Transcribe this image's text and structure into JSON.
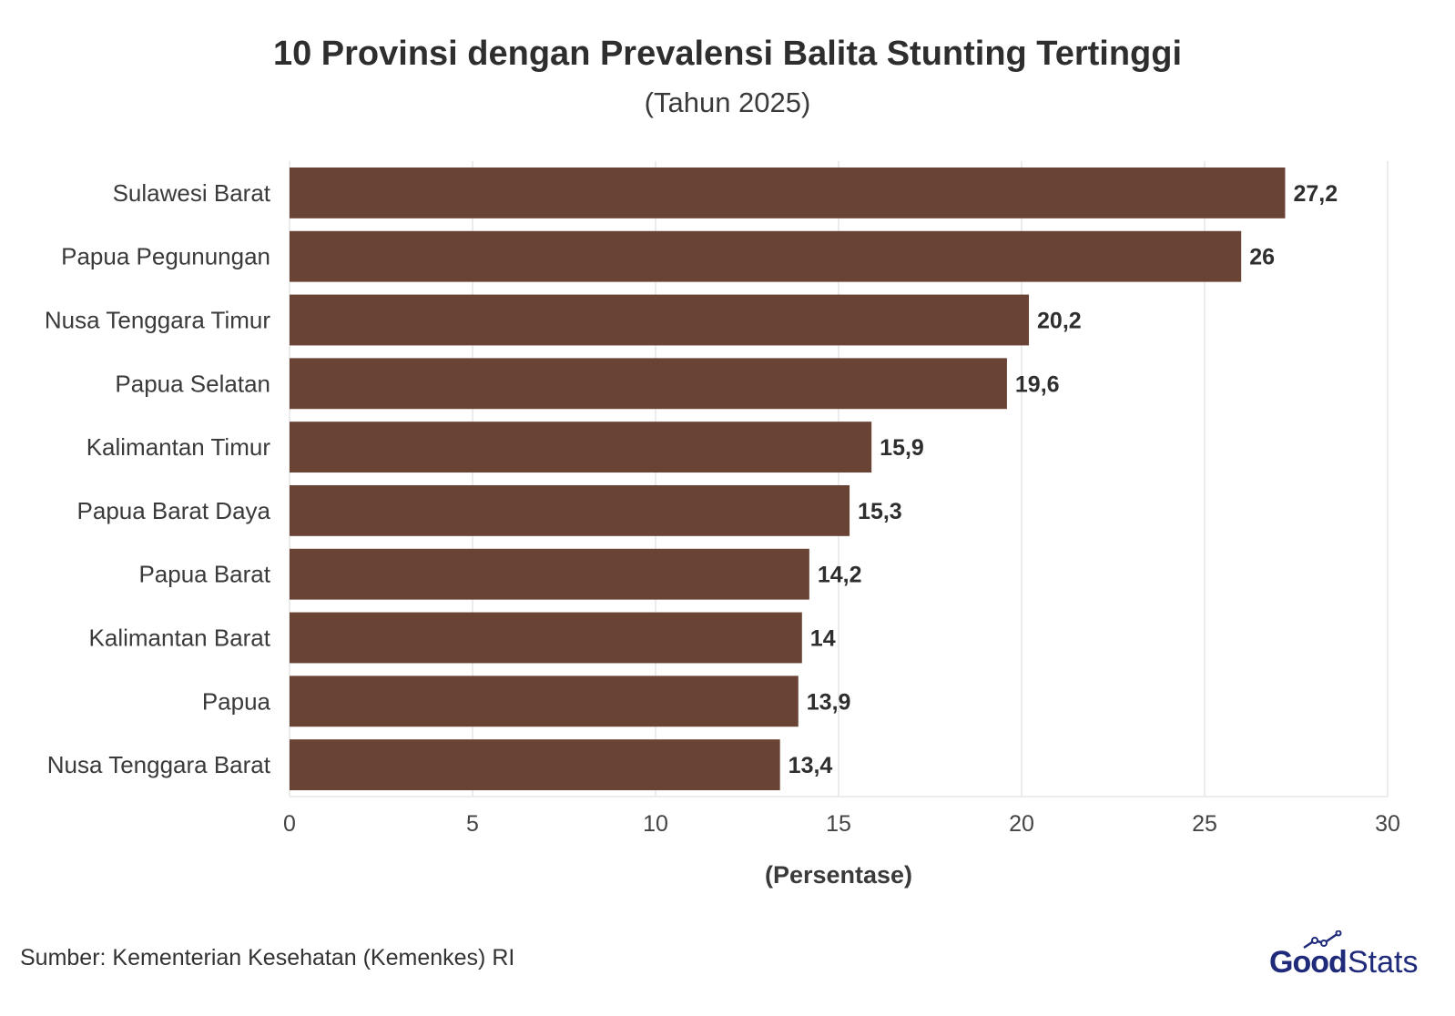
{
  "header": {
    "title": "10 Provinsi dengan Prevalensi Balita Stunting Tertinggi",
    "subtitle": "(Tahun 2025)"
  },
  "footer": {
    "source": "Sumber: Kementerian Kesehatan (Kemenkes) RI",
    "logo_part1": "Good",
    "logo_part2": "Stats"
  },
  "colors": {
    "bar": "#694334",
    "grid": "#e6e6e6",
    "logo": "#1f2a7a"
  },
  "chart_data": {
    "type": "bar",
    "orientation": "horizontal",
    "title": "10 Provinsi dengan Prevalensi Balita Stunting Tertinggi",
    "subtitle": "(Tahun 2025)",
    "xlabel": "(Persentase)",
    "ylabel": "",
    "xlim": [
      0,
      30
    ],
    "xticks": [
      0,
      5,
      10,
      15,
      20,
      25,
      30
    ],
    "grid": true,
    "categories": [
      "Sulawesi Barat",
      "Papua Pegunungan",
      "Nusa Tenggara Timur",
      "Papua Selatan",
      "Kalimantan Timur",
      "Papua Barat Daya",
      "Papua Barat",
      "Kalimantan Barat",
      "Papua",
      "Nusa Tenggara Barat"
    ],
    "values": [
      27.2,
      26,
      20.2,
      19.6,
      15.9,
      15.3,
      14.2,
      14,
      13.9,
      13.4
    ],
    "value_labels": [
      "27,2",
      "26",
      "20,2",
      "19,6",
      "15,9",
      "15,3",
      "14,2",
      "14",
      "13,9",
      "13,4"
    ]
  }
}
